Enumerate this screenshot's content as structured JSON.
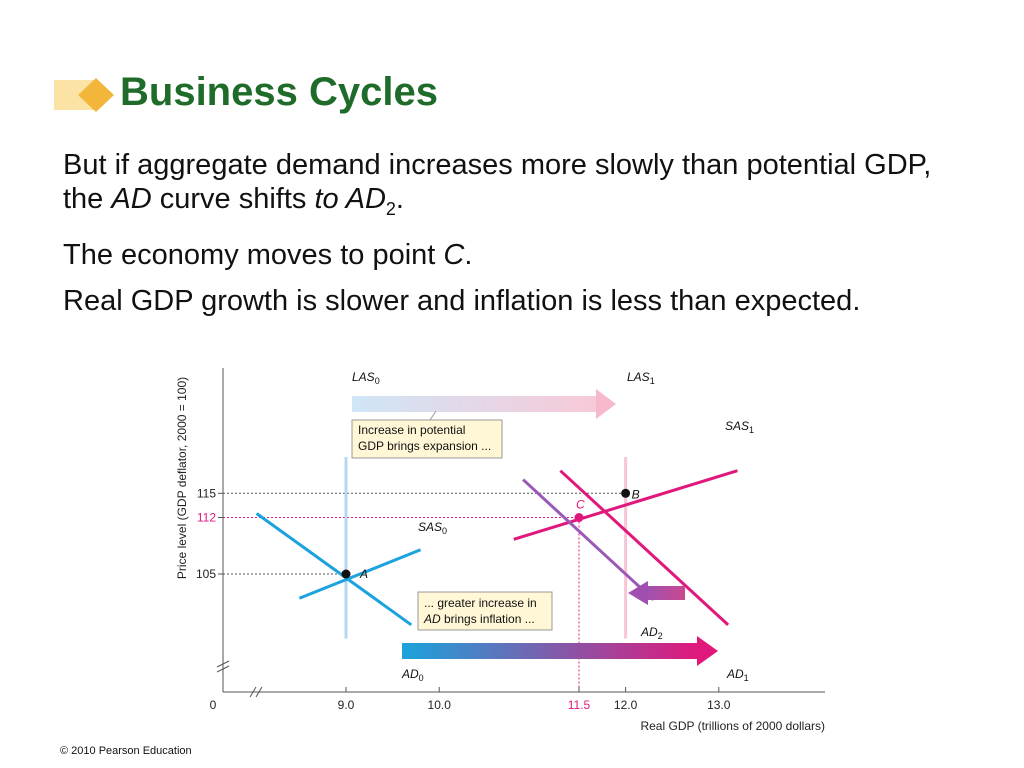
{
  "slide": {
    "title": "Business Cycles",
    "bullets": [
      {
        "text": "But if aggregate demand increases more slowly than potential GDP, the ",
        "em1": "AD",
        "mid": " curve shifts ",
        "em2": "to AD",
        "sub": "2",
        "end": "."
      },
      {
        "text": "The economy moves to point ",
        "em": "C",
        "end": "."
      },
      {
        "text": "Real GDP growth is slower and inflation is less than expected."
      }
    ],
    "footer": "© 2010 Pearson Education"
  },
  "chart_data": {
    "type": "line",
    "xlabel": "Real GDP (trillions of 2000 dollars)",
    "ylabel": "Price level (GDP deflator, 2000 = 100)",
    "xlim": [
      0,
      15
    ],
    "ylim": [
      95,
      120
    ],
    "x_ticks": [
      {
        "value": 0,
        "label": "0"
      },
      {
        "value": 9.0,
        "label": "9.0"
      },
      {
        "value": 10.0,
        "label": "10.0"
      },
      {
        "value": 11.5,
        "label": "11.5"
      },
      {
        "value": 12.0,
        "label": "12.0"
      },
      {
        "value": 13.0,
        "label": "13.0"
      }
    ],
    "y_ticks": [
      {
        "value": 105,
        "label": "105"
      },
      {
        "value": 112,
        "label": "112"
      },
      {
        "value": 115,
        "label": "115"
      }
    ],
    "series": [
      {
        "name": "LAS",
        "sub": "0",
        "color": "#b3d9f2",
        "points": [
          [
            9.0,
            97
          ],
          [
            9.0,
            119.5
          ]
        ]
      },
      {
        "name": "LAS",
        "sub": "1",
        "color": "#f7c6d4",
        "points": [
          [
            12.0,
            97
          ],
          [
            12.0,
            119.5
          ]
        ]
      },
      {
        "name": "SAS",
        "sub": "0",
        "color": "#1aa3dc",
        "points": [
          [
            8.5,
            102
          ],
          [
            9.8,
            108
          ]
        ]
      },
      {
        "name": "SAS",
        "sub": "1",
        "color": "#e0187c",
        "points": [
          [
            10.8,
            109.3
          ],
          [
            13.2,
            117.8
          ]
        ]
      },
      {
        "name": "AD",
        "sub": "0",
        "color": "#1aa3dc",
        "points": [
          [
            8.4,
            112.5
          ],
          [
            9.7,
            98.7
          ]
        ]
      },
      {
        "name": "AD",
        "sub": "1",
        "color": "#e0187c",
        "points": [
          [
            11.3,
            117.8
          ],
          [
            13.1,
            98.7
          ]
        ]
      },
      {
        "name": "AD",
        "sub": "2",
        "color": "#9b59b6",
        "points": [
          [
            10.9,
            116.7
          ],
          [
            12.3,
            101.8
          ]
        ]
      }
    ],
    "points": [
      {
        "label": "A",
        "x": 9.0,
        "y": 105,
        "color": "#111111"
      },
      {
        "label": "B",
        "x": 12.0,
        "y": 115,
        "color": "#111111"
      },
      {
        "label": "C",
        "x": 11.5,
        "y": 112,
        "color": "#e0187c"
      }
    ],
    "annotations": [
      {
        "text_lines": [
          "Increase in potential",
          "GDP brings expansion ..."
        ]
      },
      {
        "text_lines": [
          "... greater increase in",
          "AD brings inflation ..."
        ]
      }
    ],
    "highlight_color": "#e0187c"
  }
}
